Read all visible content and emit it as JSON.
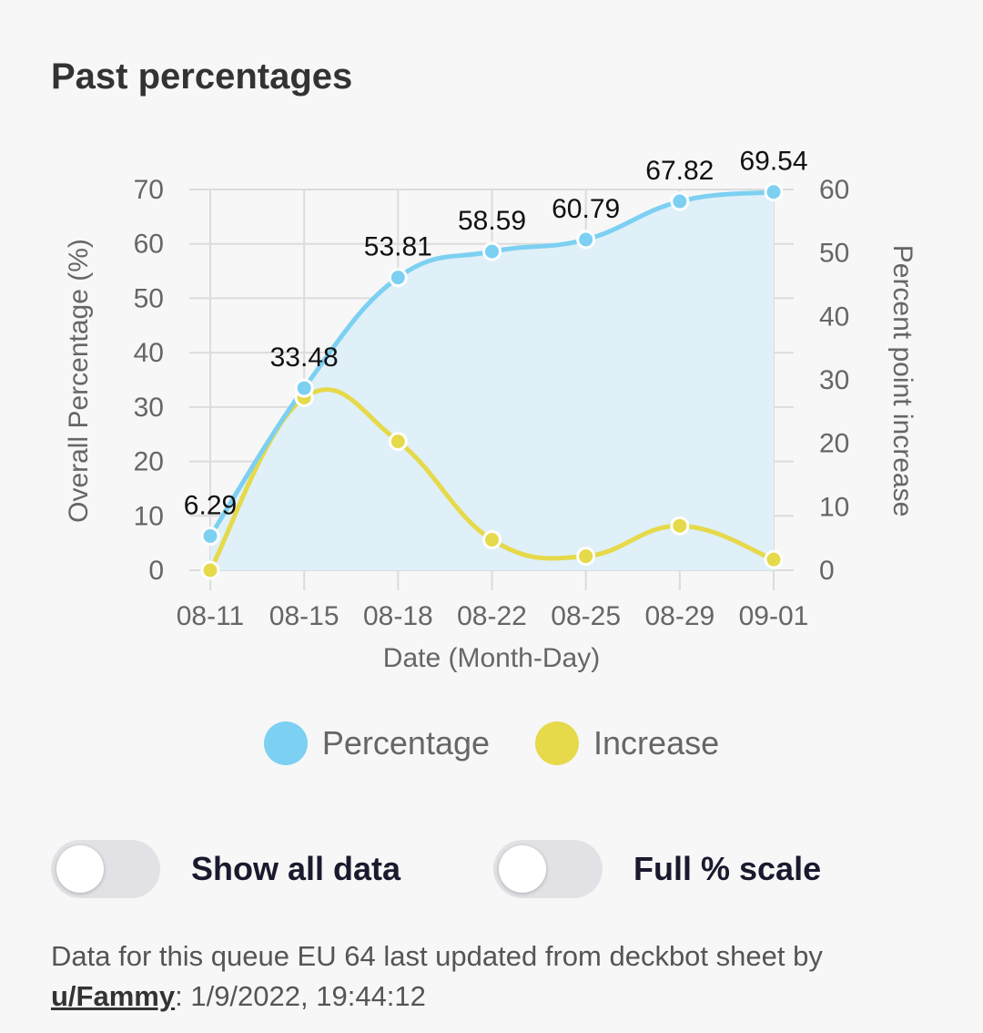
{
  "header": {
    "title": "Past percentages"
  },
  "chart_data": {
    "type": "line",
    "categories": [
      "08-11",
      "08-15",
      "08-18",
      "08-22",
      "08-25",
      "08-29",
      "09-01"
    ],
    "series": [
      {
        "name": "Percentage",
        "axis": "left",
        "values": [
          6.29,
          33.48,
          53.81,
          58.59,
          60.79,
          67.82,
          69.54
        ],
        "color": "#7cd0f2",
        "fill": "#dff0f8",
        "show_labels": true
      },
      {
        "name": "Increase",
        "axis": "right",
        "values": [
          0,
          27.2,
          20.3,
          4.8,
          2.2,
          7.0,
          1.7
        ],
        "color": "#e6d94a",
        "show_labels": false
      }
    ],
    "xlabel": "Date (Month-Day)",
    "ylabel": "Overall Percentage (%)",
    "y2label": "Percent point increase",
    "ylim": [
      0,
      70
    ],
    "y2lim": [
      0,
      60
    ],
    "yticks": [
      "0",
      "10",
      "20",
      "30",
      "40",
      "50",
      "60",
      "70"
    ],
    "y2ticks": [
      "0",
      "10",
      "20",
      "30",
      "40",
      "50",
      "60"
    ],
    "grid": true,
    "legend": "bottom"
  },
  "controls": {
    "show_all_label": "Show all data",
    "full_scale_label": "Full % scale"
  },
  "footer": {
    "text_before": "Data for this queue EU 64 last updated from deckbot sheet by ",
    "user_link": "u/Fammy",
    "text_after": ": 1/9/2022, 19:44:12"
  }
}
